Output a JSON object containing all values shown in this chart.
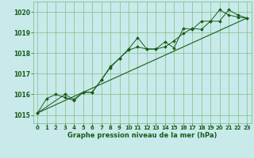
{
  "background_color": "#c8eaea",
  "grid_color": "#7ab87a",
  "line_color": "#1a5c1a",
  "marker_color": "#1a5c1a",
  "xlabel": "Graphe pression niveau de la mer (hPa)",
  "xlabel_color": "#1a5c1a",
  "xlim": [
    -0.5,
    23.5
  ],
  "ylim": [
    1014.6,
    1020.5
  ],
  "yticks": [
    1015,
    1016,
    1017,
    1018,
    1019,
    1020
  ],
  "xticks": [
    0,
    1,
    2,
    3,
    4,
    5,
    6,
    7,
    8,
    9,
    10,
    11,
    12,
    13,
    14,
    15,
    16,
    17,
    18,
    19,
    20,
    21,
    22,
    23
  ],
  "series1_x": [
    0,
    1,
    2,
    3,
    4,
    5,
    6,
    7,
    8,
    9,
    10,
    11,
    12,
    13,
    14,
    15,
    16,
    17,
    18,
    19,
    20,
    21,
    22,
    23
  ],
  "series1_y": [
    1015.1,
    1015.8,
    1016.0,
    1015.85,
    1015.7,
    1016.1,
    1016.1,
    1016.7,
    1017.35,
    1017.75,
    1018.2,
    1018.75,
    1018.2,
    1018.2,
    1018.3,
    1018.6,
    1018.95,
    1019.2,
    1019.15,
    1019.55,
    1019.55,
    1020.1,
    1019.85,
    1019.7
  ],
  "series2_x": [
    0,
    3,
    4,
    5,
    6,
    7,
    8,
    9,
    10,
    11,
    12,
    13,
    14,
    15,
    16,
    17,
    18,
    19,
    20,
    21,
    22,
    23
  ],
  "series2_y": [
    1015.1,
    1016.0,
    1015.75,
    1016.1,
    1016.1,
    1016.7,
    1017.3,
    1017.75,
    1018.15,
    1018.3,
    1018.2,
    1018.2,
    1018.55,
    1018.25,
    1019.2,
    1019.15,
    1019.55,
    1019.55,
    1020.1,
    1019.85,
    1019.75,
    1019.7
  ],
  "trend_x": [
    0,
    23
  ],
  "trend_y": [
    1015.1,
    1019.7
  ]
}
